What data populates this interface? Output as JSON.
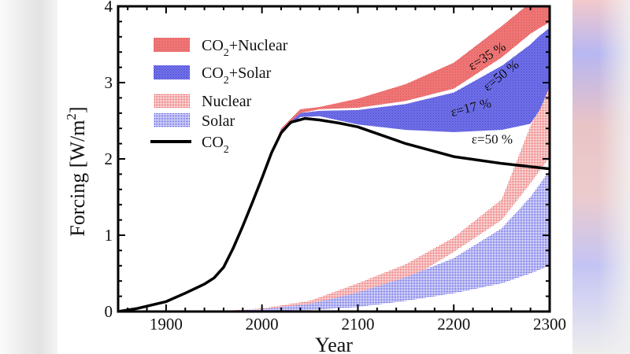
{
  "chart_data": {
    "type": "area",
    "xlabel": "Year",
    "ylabel": "Forcing [W/m",
    "ylabel_sup": "2",
    "ylabel_end": "]",
    "xlim": [
      1850,
      2300
    ],
    "ylim": [
      0,
      4
    ],
    "x_ticks": [
      1900,
      2000,
      2100,
      2200,
      2300
    ],
    "y_ticks": [
      0,
      1,
      2,
      3,
      4
    ],
    "grid": false,
    "legend_position": "top-left",
    "colors": {
      "nuclear": "#e03030",
      "solar": "#2020d0",
      "co2": "#000000"
    },
    "legend": [
      {
        "key": "co2_nuclear",
        "main": "CO",
        "sub": "2",
        "rest": "+Nuclear"
      },
      {
        "key": "co2_solar",
        "main": "CO",
        "sub": "2",
        "rest": "+Solar"
      },
      {
        "key": "nuclear",
        "main": "Nuclear",
        "sub": "",
        "rest": ""
      },
      {
        "key": "solar",
        "main": "Solar",
        "sub": "",
        "rest": ""
      },
      {
        "key": "co2",
        "main": "CO",
        "sub": "2",
        "rest": ""
      }
    ],
    "series": [
      {
        "key": "co2_nuclear",
        "kind": "band",
        "x": [
          2000,
          2020,
          2040,
          2060,
          2100,
          2150,
          2200,
          2250,
          2280,
          2290,
          2300
        ],
        "lower": [
          1.76,
          2.36,
          2.6,
          2.65,
          2.67,
          2.76,
          2.92,
          3.33,
          3.64,
          3.72,
          3.79
        ],
        "upper": [
          1.78,
          2.4,
          2.65,
          2.68,
          2.79,
          2.98,
          3.26,
          3.74,
          4.05,
          4.2,
          4.3
        ]
      },
      {
        "key": "co2_solar",
        "kind": "band",
        "x": [
          2000,
          2020,
          2040,
          2060,
          2100,
          2150,
          2200,
          2250,
          2280,
          2290,
          2300
        ],
        "lower": [
          1.75,
          2.35,
          2.55,
          2.56,
          2.45,
          2.38,
          2.35,
          2.38,
          2.46,
          2.65,
          2.95
        ],
        "upper": [
          1.77,
          2.38,
          2.6,
          2.63,
          2.64,
          2.72,
          2.87,
          3.22,
          3.5,
          3.62,
          3.72
        ]
      },
      {
        "key": "nuclear",
        "kind": "band",
        "x": [
          1950,
          2000,
          2050,
          2100,
          2150,
          2200,
          2250,
          2280,
          2300
        ],
        "lower": [
          0,
          0.02,
          0.06,
          0.16,
          0.4,
          0.78,
          1.2,
          1.68,
          2.02
        ],
        "upper": [
          0,
          0.04,
          0.14,
          0.37,
          0.62,
          0.97,
          1.47,
          2.43,
          2.95
        ]
      },
      {
        "key": "solar",
        "kind": "band",
        "x": [
          1950,
          2000,
          2050,
          2100,
          2150,
          2200,
          2250,
          2280,
          2300
        ],
        "lower": [
          0,
          0.01,
          0.02,
          0.06,
          0.14,
          0.24,
          0.37,
          0.5,
          0.6
        ],
        "upper": [
          0,
          0.03,
          0.1,
          0.25,
          0.45,
          0.7,
          1.09,
          1.5,
          1.85
        ]
      },
      {
        "key": "co2",
        "kind": "line",
        "x": [
          1850,
          1870,
          1900,
          1920,
          1940,
          1950,
          1960,
          1970,
          1980,
          1990,
          2000,
          2010,
          2020,
          2030,
          2045,
          2060,
          2080,
          2100,
          2150,
          2200,
          2250,
          2300
        ],
        "y": [
          0,
          0.04,
          0.13,
          0.24,
          0.36,
          0.44,
          0.58,
          0.83,
          1.12,
          1.43,
          1.75,
          2.08,
          2.34,
          2.48,
          2.53,
          2.51,
          2.47,
          2.42,
          2.2,
          2.03,
          1.94,
          1.87
        ]
      }
    ],
    "annotations": [
      {
        "text": "ε=35 %",
        "x": 2237,
        "y": 3.3,
        "angle": -32
      },
      {
        "text": "ε=50 %",
        "x": 2252,
        "y": 3.05,
        "angle": -38
      },
      {
        "text": "ε=17 %",
        "x": 2219,
        "y": 2.62,
        "angle": -14
      },
      {
        "text": "ε=50 %",
        "x": 2240,
        "y": 2.2,
        "angle": 0
      }
    ]
  }
}
